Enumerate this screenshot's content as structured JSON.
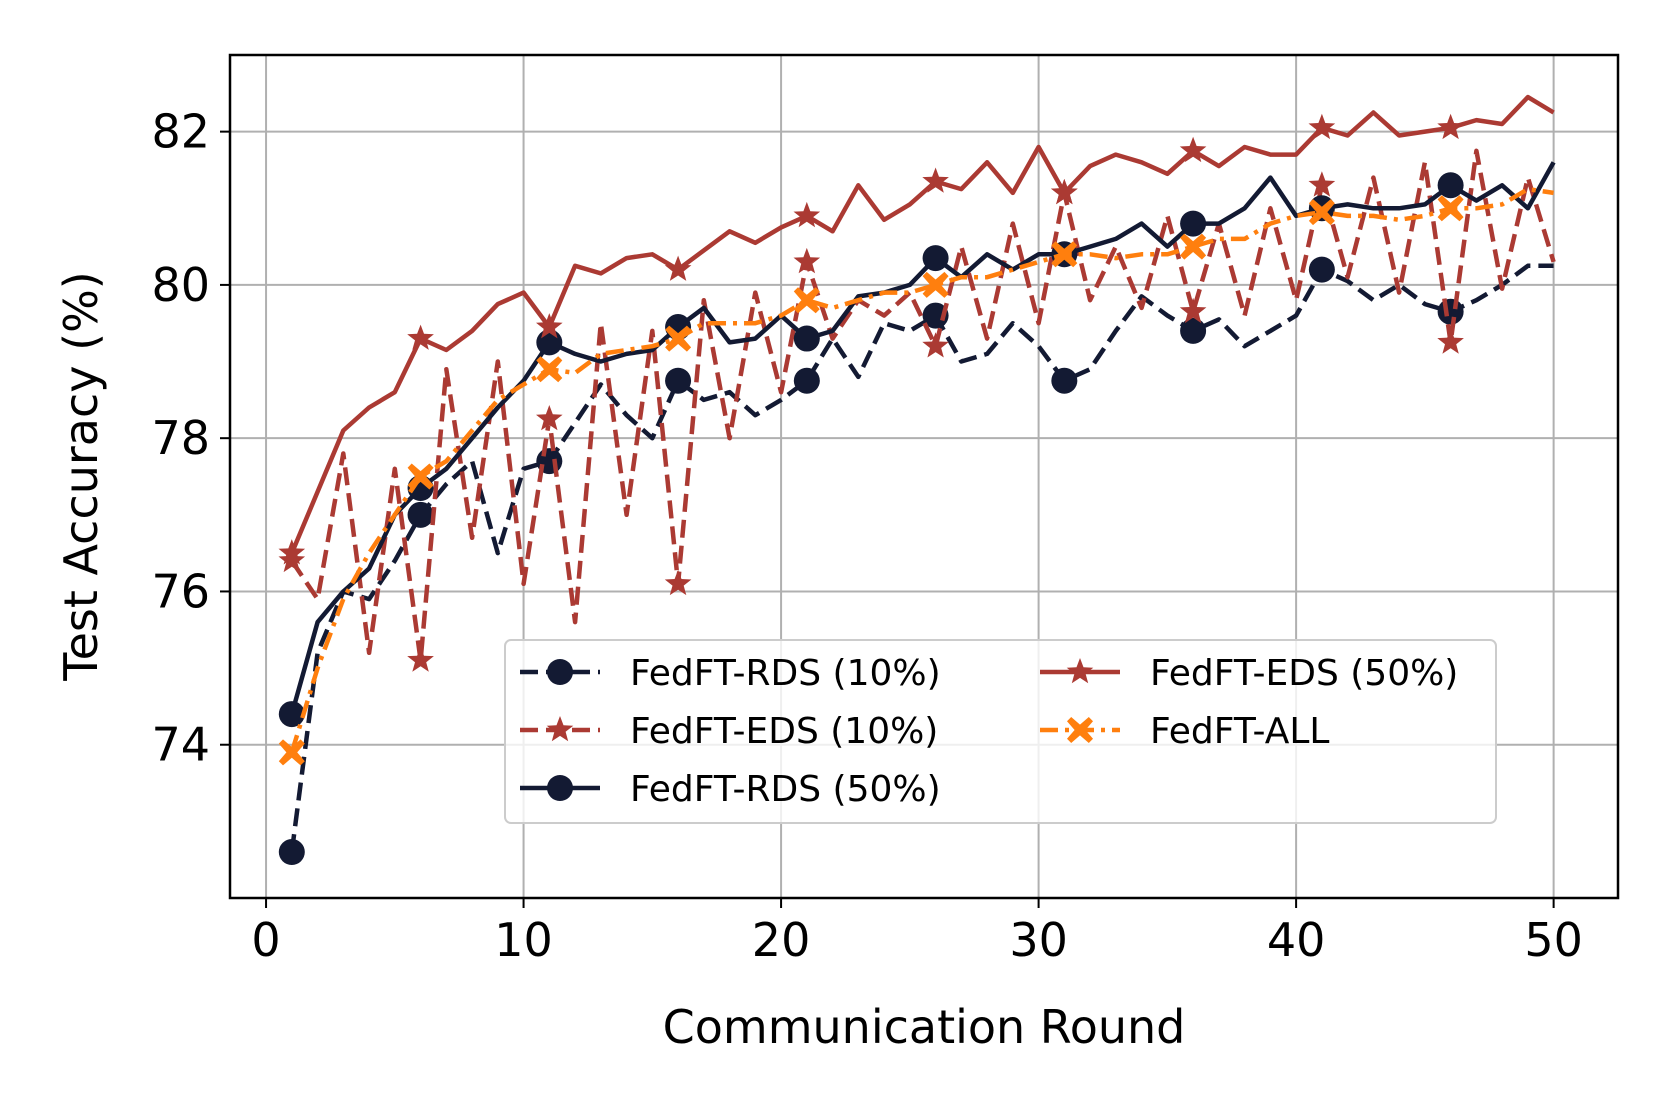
{
  "chart_data": {
    "type": "line",
    "title": "",
    "xlabel": "Communication Round",
    "ylabel": "Test Accuracy (%)",
    "xlim": [
      -1.4,
      52.5
    ],
    "ylim": [
      72.0,
      83.0
    ],
    "xticks": [
      0,
      10,
      20,
      30,
      40,
      50
    ],
    "yticks": [
      74,
      76,
      78,
      80,
      82
    ],
    "xtick_labels": [
      "0",
      "10",
      "20",
      "30",
      "40",
      "50"
    ],
    "ytick_labels": [
      "74",
      "76",
      "78",
      "80",
      "82"
    ],
    "grid": true,
    "legend_position": "lower-right",
    "x": [
      1,
      2,
      3,
      4,
      5,
      6,
      7,
      8,
      9,
      10,
      11,
      12,
      13,
      14,
      15,
      16,
      17,
      18,
      19,
      20,
      21,
      22,
      23,
      24,
      25,
      26,
      27,
      28,
      29,
      30,
      31,
      32,
      33,
      34,
      35,
      36,
      37,
      38,
      39,
      40,
      41,
      42,
      43,
      44,
      45,
      46,
      47,
      48,
      49,
      50
    ],
    "series": [
      {
        "name": "FedFT-RDS (10%)",
        "color": "#131a33",
        "dash": "dashed",
        "marker": "circle",
        "markevery": [
          1,
          6,
          11,
          16,
          21,
          26,
          31,
          36,
          41,
          46
        ],
        "values": [
          72.6,
          75.2,
          76.0,
          75.9,
          76.4,
          77.0,
          77.4,
          77.7,
          76.5,
          77.6,
          77.7,
          78.2,
          78.7,
          78.3,
          78.0,
          78.75,
          78.5,
          78.6,
          78.3,
          78.5,
          78.75,
          79.3,
          78.8,
          79.5,
          79.4,
          79.6,
          79.0,
          79.1,
          79.5,
          79.2,
          78.75,
          78.9,
          79.4,
          79.85,
          79.6,
          79.4,
          79.55,
          79.2,
          79.4,
          79.6,
          80.2,
          80.05,
          79.8,
          80.0,
          79.75,
          79.65,
          79.8,
          80.0,
          80.25,
          80.25
        ]
      },
      {
        "name": "FedFT-EDS (10%)",
        "color": "#ab3a33",
        "dash": "dashed",
        "marker": "star",
        "markevery": [
          1,
          6,
          11,
          16,
          21,
          26,
          31,
          36,
          41,
          46
        ],
        "values": [
          76.4,
          75.9,
          77.8,
          75.2,
          77.6,
          75.1,
          78.9,
          76.7,
          79.0,
          76.1,
          78.25,
          75.6,
          79.5,
          77.0,
          79.4,
          76.1,
          79.8,
          78.0,
          79.9,
          78.6,
          80.3,
          79.3,
          79.8,
          79.6,
          79.9,
          79.2,
          80.5,
          79.3,
          80.8,
          79.5,
          81.2,
          79.8,
          80.5,
          79.7,
          80.9,
          79.65,
          80.8,
          79.6,
          81.0,
          79.8,
          81.3,
          80.1,
          81.4,
          79.9,
          81.6,
          79.25,
          81.75,
          79.95,
          81.4,
          80.3
        ]
      },
      {
        "name": "FedFT-RDS (50%)",
        "color": "#131a33",
        "dash": "solid",
        "marker": "circle",
        "markevery": [
          1,
          6,
          11,
          16,
          21,
          26,
          31,
          36,
          41,
          46
        ],
        "values": [
          74.4,
          75.6,
          76.0,
          76.3,
          77.0,
          77.35,
          77.6,
          78.0,
          78.4,
          78.75,
          79.25,
          79.1,
          79.0,
          79.1,
          79.15,
          79.45,
          79.7,
          79.25,
          79.3,
          79.6,
          79.3,
          79.4,
          79.85,
          79.9,
          80.0,
          80.35,
          80.1,
          80.4,
          80.2,
          80.4,
          80.4,
          80.5,
          80.6,
          80.8,
          80.5,
          80.8,
          80.8,
          81.0,
          81.4,
          80.9,
          81.0,
          81.05,
          81.0,
          81.0,
          81.05,
          81.3,
          81.1,
          81.3,
          81.0,
          81.6
        ]
      },
      {
        "name": "FedFT-EDS (50%)",
        "color": "#ab3a33",
        "dash": "solid",
        "marker": "star",
        "markevery": [
          1,
          6,
          11,
          16,
          21,
          26,
          31,
          36,
          41,
          46
        ],
        "values": [
          76.5,
          77.3,
          78.1,
          78.4,
          78.6,
          79.3,
          79.15,
          79.4,
          79.75,
          79.9,
          79.45,
          80.25,
          80.15,
          80.35,
          80.4,
          80.2,
          80.45,
          80.7,
          80.55,
          80.75,
          80.9,
          80.7,
          81.3,
          80.85,
          81.05,
          81.35,
          81.25,
          81.6,
          81.2,
          81.8,
          81.2,
          81.55,
          81.7,
          81.6,
          81.45,
          81.75,
          81.55,
          81.8,
          81.7,
          81.7,
          82.05,
          81.95,
          82.25,
          81.95,
          82.0,
          82.05,
          82.15,
          82.1,
          82.45,
          82.25
        ]
      },
      {
        "name": "FedFT-ALL",
        "color": "#ff7f0e",
        "dash": "dashdot",
        "marker": "x",
        "markevery": [
          1,
          6,
          11,
          16,
          21,
          26,
          31,
          36,
          41,
          46
        ],
        "values": [
          73.9,
          75.0,
          75.9,
          76.5,
          77.0,
          77.5,
          77.7,
          78.1,
          78.5,
          78.7,
          78.9,
          78.85,
          79.1,
          79.15,
          79.2,
          79.3,
          79.5,
          79.5,
          79.5,
          79.6,
          79.8,
          79.7,
          79.8,
          79.9,
          79.9,
          80.0,
          80.1,
          80.1,
          80.2,
          80.3,
          80.4,
          80.4,
          80.35,
          80.4,
          80.4,
          80.5,
          80.6,
          80.6,
          80.8,
          80.9,
          80.95,
          80.9,
          80.9,
          80.85,
          80.9,
          81.0,
          81.0,
          81.05,
          81.25,
          81.2
        ]
      }
    ]
  }
}
